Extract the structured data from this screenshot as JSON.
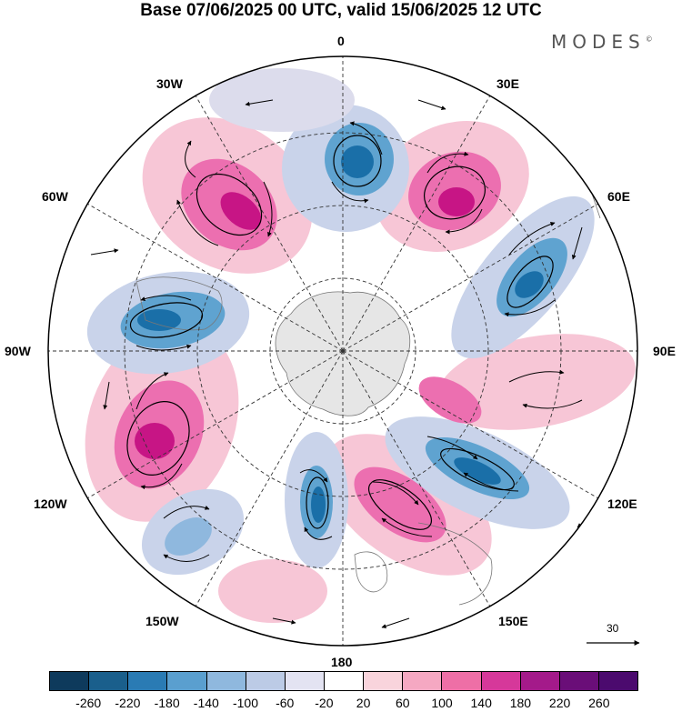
{
  "title": "Base 07/06/2025 00 UTC, valid 15/06/2025 12 UTC",
  "brand": "MODES",
  "brand_mark": "©",
  "map": {
    "projection": "south polar stereographic",
    "longitude_labels": {
      "top": "0",
      "top_right": "30E",
      "upper_right": "60E",
      "right": "90E",
      "lower_right": "120E",
      "bottom_right": "150E",
      "bottom": "180",
      "bottom_left": "150W",
      "lower_left": "120W",
      "left": "90W",
      "upper_left": "60W",
      "top_left": "30W"
    },
    "vector_scale_label": "30",
    "fill_colors": {
      "strong_positive": "#c71585",
      "positive": "#ec6fb0",
      "weak_positive": "#f7c6d6",
      "strong_negative": "#1a6fa8",
      "negative": "#5fa3d0",
      "weak_negative": "#c9d3ea",
      "land": "#e6e6e6"
    }
  },
  "colorbar": {
    "colors": [
      "#0e3a5c",
      "#1a5f8c",
      "#2a7bb4",
      "#5a9fcf",
      "#8fb8de",
      "#bccbe6",
      "#e3e3f2",
      "#ffffff",
      "#f9d4dc",
      "#f5a8c2",
      "#ee6fa6",
      "#d6389a",
      "#a41a8a",
      "#6a0e78",
      "#4b0a6e"
    ],
    "tick_labels": [
      "-260",
      "-220",
      "-180",
      "-140",
      "-100",
      "-60",
      "-20",
      "20",
      "60",
      "100",
      "140",
      "180",
      "220",
      "260"
    ]
  }
}
